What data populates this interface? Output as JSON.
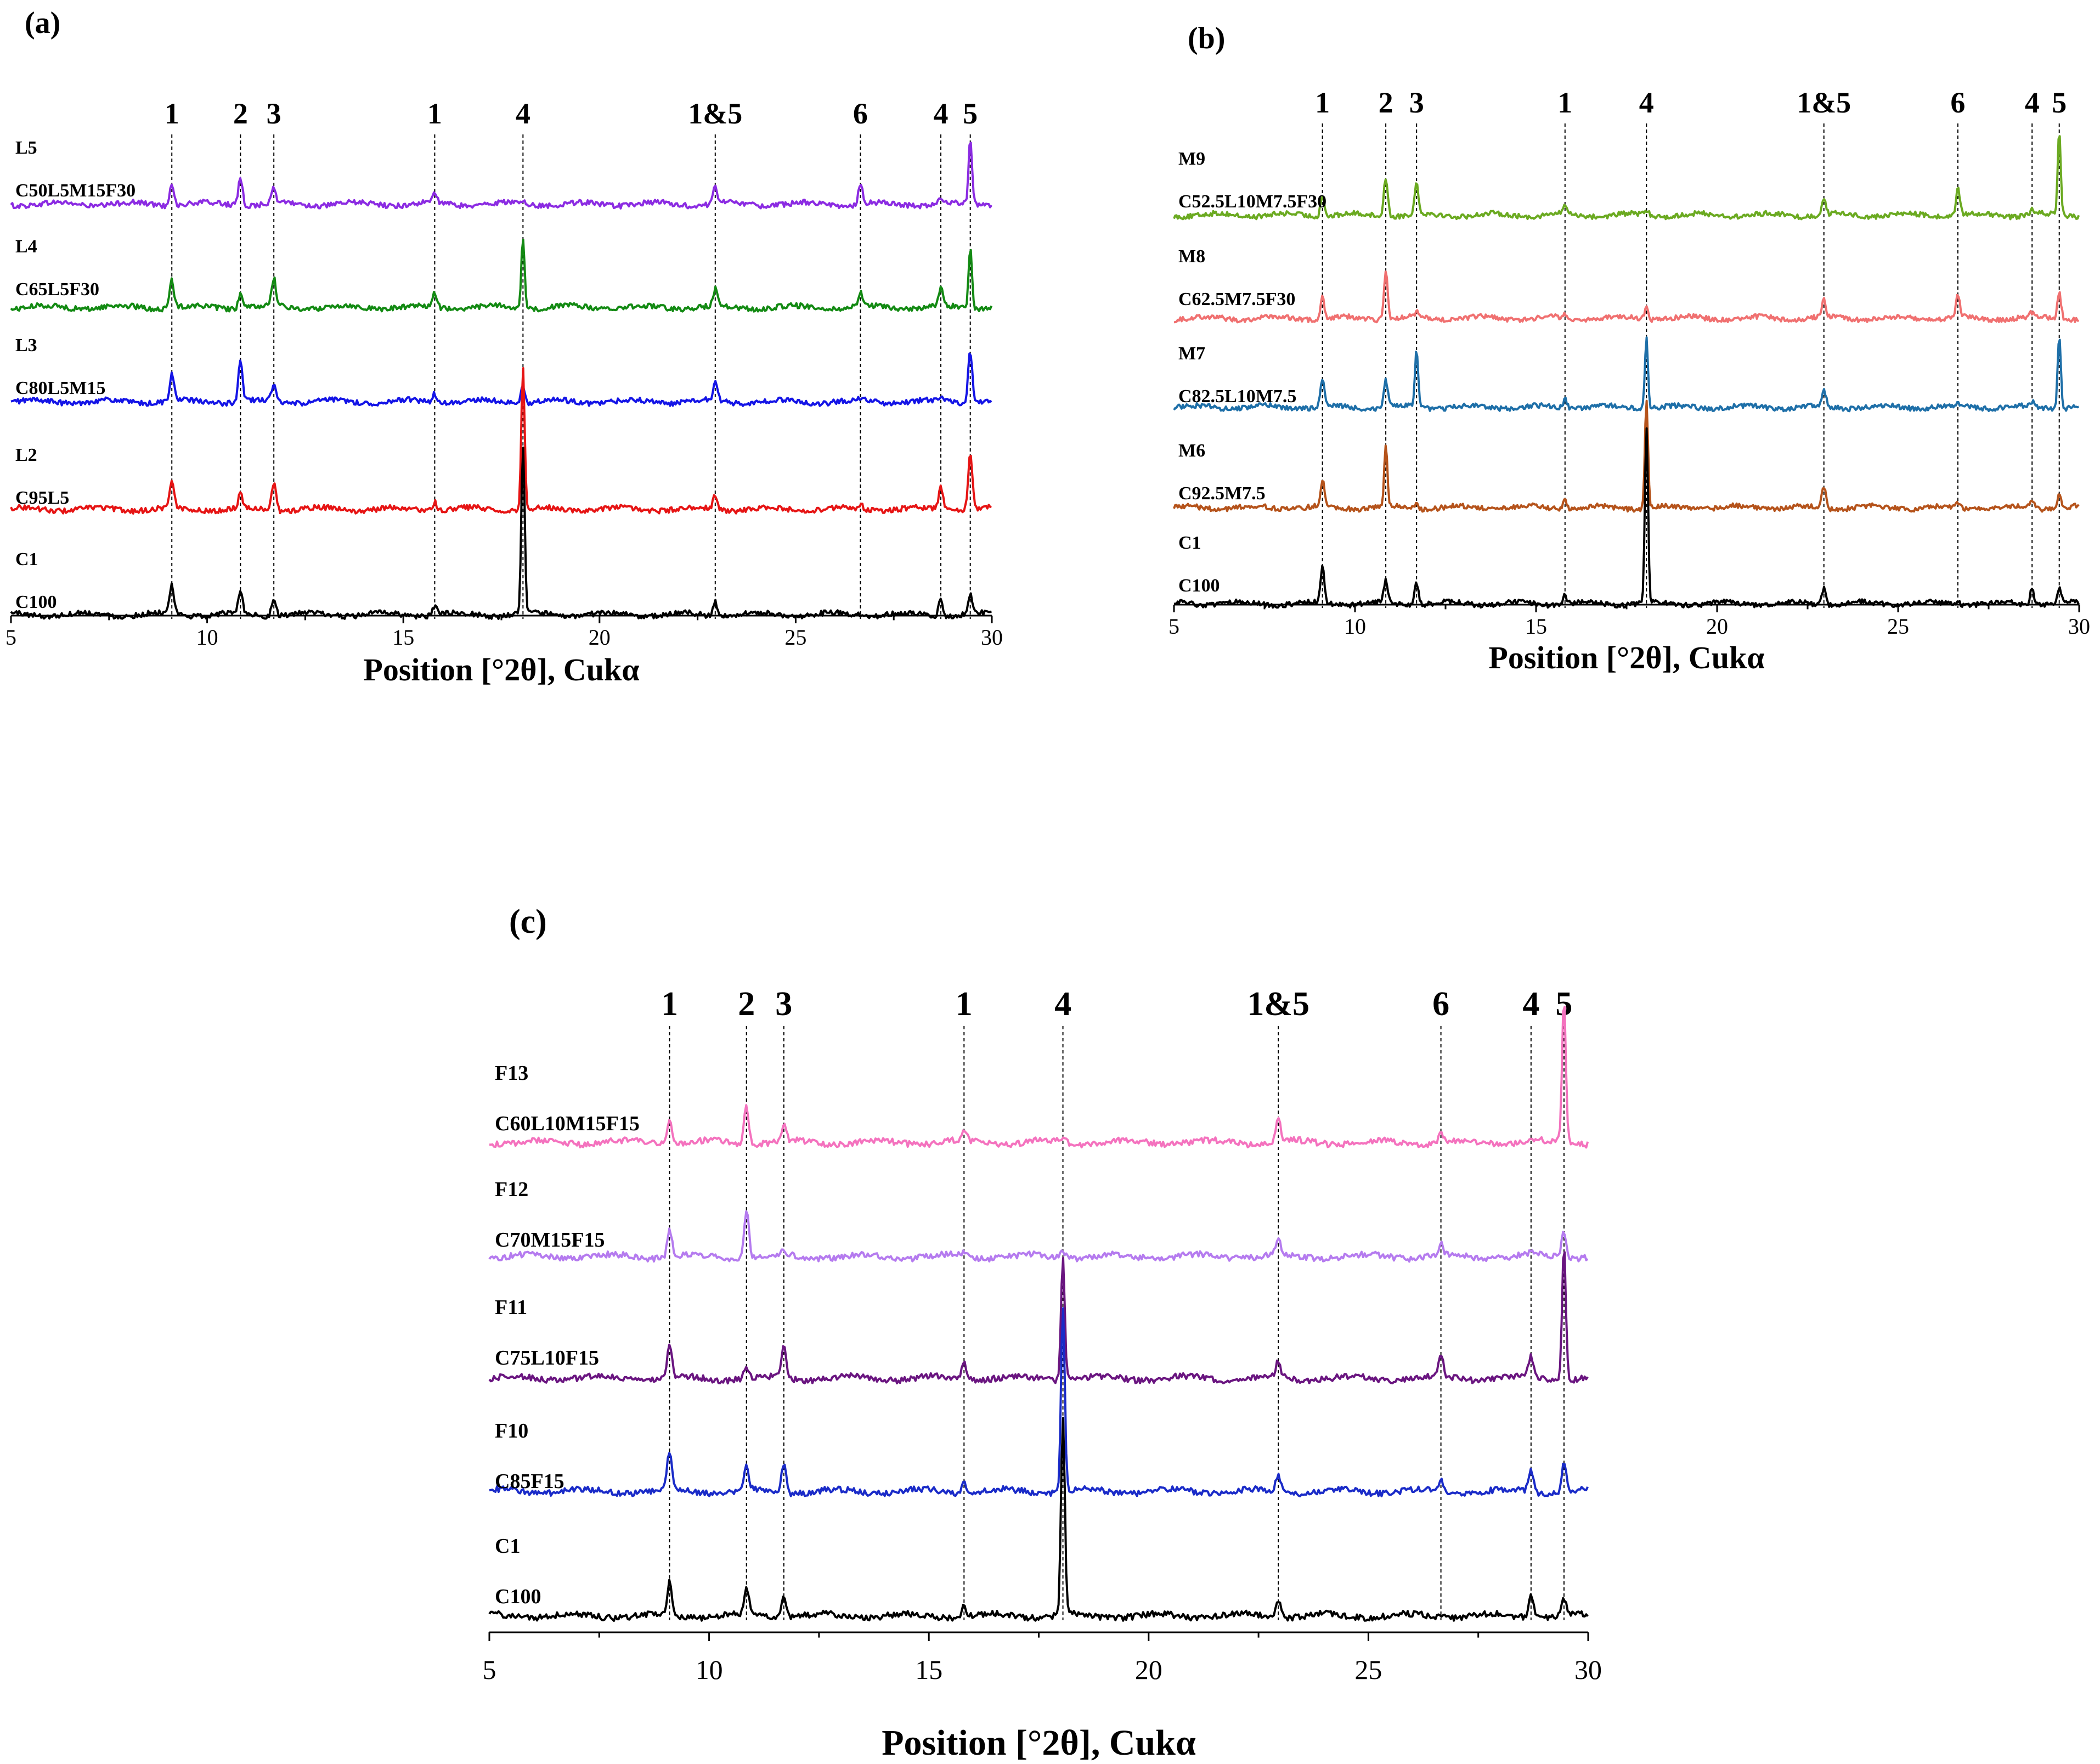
{
  "chart_data": [
    {
      "type": "line",
      "panel": "(a)",
      "xlabel": "Position [°2θ], Cukα",
      "xlim": [
        5,
        30
      ],
      "xticks": [
        5,
        10,
        15,
        20,
        25,
        30
      ],
      "x_tick_labels": [
        "5",
        "10",
        "15",
        "20",
        "25",
        "30"
      ],
      "peak_markers": [
        {
          "label": "1",
          "x": 9.1
        },
        {
          "label": "2",
          "x": 10.85
        },
        {
          "label": "3",
          "x": 11.7
        },
        {
          "label": "1",
          "x": 15.8
        },
        {
          "label": "4",
          "x": 18.05
        },
        {
          "label": "1&5",
          "x": 22.95
        },
        {
          "label": "6",
          "x": 26.65
        },
        {
          "label": "4",
          "x": 28.7
        },
        {
          "label": "5",
          "x": 29.45
        }
      ],
      "series": [
        {
          "id": "L5",
          "mix": "C50L5M15F30",
          "color": "#8B2BE2",
          "peaks": [
            [
              9.1,
              5
            ],
            [
              10.85,
              6
            ],
            [
              11.7,
              3
            ],
            [
              15.8,
              2
            ],
            [
              18.05,
              1
            ],
            [
              22.95,
              4
            ],
            [
              26.65,
              4.5
            ],
            [
              28.7,
              1
            ],
            [
              29.45,
              14
            ]
          ]
        },
        {
          "id": "L4",
          "mix": "C65L5F30",
          "color": "#138A13",
          "peaks": [
            [
              9.1,
              6
            ],
            [
              10.85,
              3
            ],
            [
              11.7,
              6
            ],
            [
              15.8,
              3
            ],
            [
              18.05,
              15
            ],
            [
              22.95,
              3.5
            ],
            [
              26.65,
              3
            ],
            [
              28.7,
              4
            ],
            [
              29.45,
              13
            ]
          ]
        },
        {
          "id": "L3",
          "mix": "C80L5M15",
          "color": "#1414E6",
          "peaks": [
            [
              9.1,
              6
            ],
            [
              10.85,
              9
            ],
            [
              11.7,
              4
            ],
            [
              15.8,
              2
            ],
            [
              18.05,
              3.5
            ],
            [
              22.95,
              4
            ],
            [
              26.65,
              0.5
            ],
            [
              28.7,
              0.5
            ],
            [
              29.45,
              11
            ]
          ]
        },
        {
          "id": "L2",
          "mix": "C95L5",
          "color": "#E61414",
          "peaks": [
            [
              9.1,
              6
            ],
            [
              10.85,
              3
            ],
            [
              11.7,
              6
            ],
            [
              15.8,
              2
            ],
            [
              18.05,
              30
            ],
            [
              22.95,
              3
            ],
            [
              26.65,
              1
            ],
            [
              28.7,
              5
            ],
            [
              29.45,
              12
            ]
          ]
        },
        {
          "id": "C1",
          "mix": "C100",
          "color": "#000000",
          "peaks": [
            [
              9.1,
              6
            ],
            [
              10.85,
              5
            ],
            [
              11.7,
              4
            ],
            [
              15.8,
              2
            ],
            [
              18.05,
              36
            ],
            [
              22.95,
              3
            ],
            [
              26.65,
              0.5
            ],
            [
              28.7,
              3.5
            ],
            [
              29.45,
              4
            ]
          ]
        }
      ]
    },
    {
      "type": "line",
      "panel": "(b)",
      "xlabel": "Position [°2θ], Cukα",
      "xlim": [
        5,
        30
      ],
      "xticks": [
        5,
        10,
        15,
        20,
        25,
        30
      ],
      "x_tick_labels": [
        "5",
        "10",
        "15",
        "20",
        "25",
        "30"
      ],
      "peak_markers": [
        {
          "label": "1",
          "x": 9.1
        },
        {
          "label": "2",
          "x": 10.85
        },
        {
          "label": "3",
          "x": 11.7
        },
        {
          "label": "1",
          "x": 15.8
        },
        {
          "label": "4",
          "x": 18.05
        },
        {
          "label": "1&5",
          "x": 22.95
        },
        {
          "label": "6",
          "x": 26.65
        },
        {
          "label": "4",
          "x": 28.7
        },
        {
          "label": "5",
          "x": 29.45
        }
      ],
      "series": [
        {
          "id": "M9",
          "mix": "C52.5L10M7.5F30",
          "color": "#6BAA21",
          "peaks": [
            [
              9.1,
              5
            ],
            [
              10.85,
              9
            ],
            [
              11.7,
              7
            ],
            [
              15.8,
              2
            ],
            [
              18.05,
              1
            ],
            [
              22.95,
              4
            ],
            [
              26.65,
              6
            ],
            [
              28.7,
              1
            ],
            [
              29.45,
              19
            ]
          ]
        },
        {
          "id": "M8",
          "mix": "C62.5M7.5F30",
          "color": "#F07070",
          "peaks": [
            [
              9.1,
              5
            ],
            [
              10.85,
              11
            ],
            [
              11.7,
              1
            ],
            [
              15.8,
              1
            ],
            [
              18.05,
              3
            ],
            [
              22.95,
              4
            ],
            [
              26.65,
              5
            ],
            [
              28.7,
              1
            ],
            [
              29.45,
              6
            ]
          ]
        },
        {
          "id": "M7",
          "mix": "C82.5L10M7.5",
          "color": "#1E6FA8",
          "peaks": [
            [
              9.1,
              6
            ],
            [
              10.85,
              6
            ],
            [
              11.7,
              13
            ],
            [
              15.8,
              2
            ],
            [
              18.05,
              16
            ],
            [
              22.95,
              4
            ],
            [
              26.65,
              0.5
            ],
            [
              28.7,
              1
            ],
            [
              29.45,
              17
            ]
          ]
        },
        {
          "id": "M6",
          "mix": "C92.5M7.5",
          "color": "#B5531B",
          "peaks": [
            [
              9.1,
              6
            ],
            [
              10.85,
              14
            ],
            [
              11.7,
              1
            ],
            [
              15.8,
              2
            ],
            [
              18.05,
              25
            ],
            [
              22.95,
              5
            ],
            [
              26.65,
              1
            ],
            [
              28.7,
              2
            ],
            [
              29.45,
              3
            ]
          ]
        },
        {
          "id": "C1",
          "mix": "C100",
          "color": "#000000",
          "peaks": [
            [
              9.1,
              8
            ],
            [
              10.85,
              5
            ],
            [
              11.7,
              5
            ],
            [
              15.8,
              2
            ],
            [
              18.05,
              40
            ],
            [
              22.95,
              4
            ],
            [
              26.65,
              0.5
            ],
            [
              28.7,
              4
            ],
            [
              29.45,
              3
            ]
          ]
        }
      ]
    },
    {
      "type": "line",
      "panel": "(c)",
      "xlabel": "Position [°2θ], Cukα",
      "xlim": [
        5,
        30
      ],
      "xticks": [
        5,
        10,
        15,
        20,
        25,
        30
      ],
      "x_tick_labels": [
        "5",
        "10",
        "15",
        "20",
        "25",
        "30"
      ],
      "peak_markers": [
        {
          "label": "1",
          "x": 9.1
        },
        {
          "label": "2",
          "x": 10.85
        },
        {
          "label": "3",
          "x": 11.7
        },
        {
          "label": "1",
          "x": 15.8
        },
        {
          "label": "4",
          "x": 18.05
        },
        {
          "label": "1&5",
          "x": 22.95
        },
        {
          "label": "6",
          "x": 26.65
        },
        {
          "label": "4",
          "x": 28.7
        },
        {
          "label": "5",
          "x": 29.45
        }
      ],
      "series": [
        {
          "id": "F13",
          "mix": "C60L10M15F15",
          "color": "#F472BE",
          "peaks": [
            [
              9.1,
              5
            ],
            [
              10.85,
              7
            ],
            [
              11.7,
              3
            ],
            [
              15.8,
              2
            ],
            [
              18.05,
              1
            ],
            [
              22.95,
              4
            ],
            [
              26.65,
              2
            ],
            [
              28.7,
              0.5
            ],
            [
              29.45,
              26
            ]
          ]
        },
        {
          "id": "F12",
          "mix": "C70M15F15",
          "color": "#B57BEF",
          "peaks": [
            [
              9.1,
              5
            ],
            [
              10.85,
              9
            ],
            [
              11.7,
              1
            ],
            [
              15.8,
              1
            ],
            [
              18.05,
              1
            ],
            [
              22.95,
              3
            ],
            [
              26.65,
              2
            ],
            [
              28.7,
              0.5
            ],
            [
              29.45,
              5
            ]
          ]
        },
        {
          "id": "F11",
          "mix": "C75L10F15",
          "color": "#6A1580",
          "peaks": [
            [
              9.1,
              6
            ],
            [
              10.85,
              2
            ],
            [
              11.7,
              6
            ],
            [
              15.8,
              3
            ],
            [
              18.05,
              22
            ],
            [
              22.95,
              3
            ],
            [
              26.65,
              4
            ],
            [
              28.7,
              4
            ],
            [
              29.45,
              25
            ]
          ]
        },
        {
          "id": "F10",
          "mix": "C85F15",
          "color": "#1A2BC8",
          "peaks": [
            [
              9.1,
              7
            ],
            [
              10.85,
              4
            ],
            [
              11.7,
              5
            ],
            [
              15.8,
              2
            ],
            [
              18.05,
              34
            ],
            [
              22.95,
              3
            ],
            [
              26.65,
              2
            ],
            [
              28.7,
              4
            ],
            [
              29.45,
              5
            ]
          ]
        },
        {
          "id": "C1",
          "mix": "C100",
          "color": "#000000",
          "peaks": [
            [
              9.1,
              6
            ],
            [
              10.85,
              5
            ],
            [
              11.7,
              4
            ],
            [
              15.8,
              2
            ],
            [
              18.05,
              36
            ],
            [
              22.95,
              3
            ],
            [
              26.65,
              0.5
            ],
            [
              28.7,
              4
            ],
            [
              29.45,
              3
            ]
          ]
        }
      ]
    }
  ]
}
